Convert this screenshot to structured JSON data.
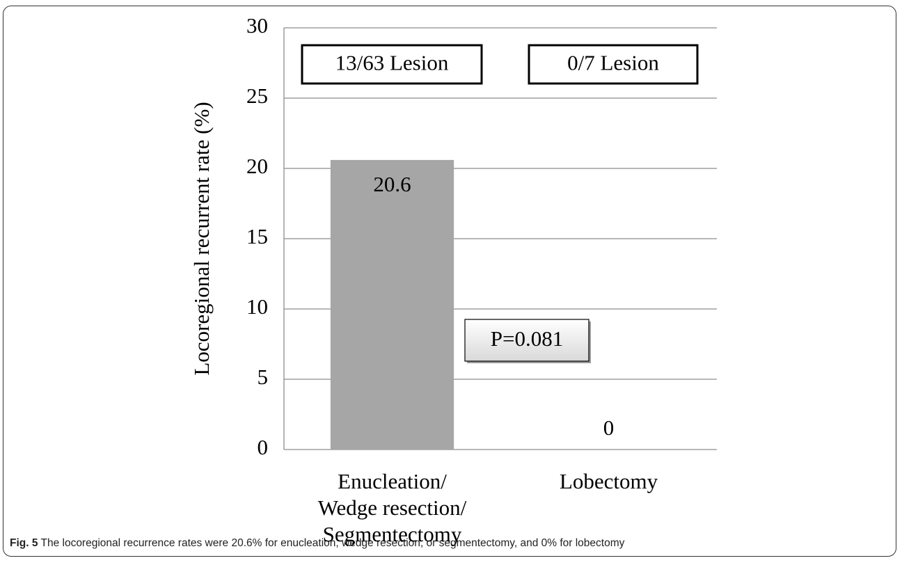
{
  "chart_data": {
    "type": "bar",
    "y_label": "Locoregional recurrent rate (%)",
    "categories": [
      "Enucleation/\nWedge resection/\nSegmentectomy",
      "Lobectomy"
    ],
    "values": [
      20.6,
      0
    ],
    "color": "#a6a6a6",
    "ylim": [
      0,
      30
    ],
    "yticks": [
      0,
      5,
      10,
      15,
      20,
      25,
      30
    ],
    "grid": true,
    "annotations": [
      "13/63 Lesion",
      "0/7 Lesion",
      "P=0.081"
    ]
  },
  "caption": {
    "label": "Fig. 5",
    "text": "The locoregional recurrence rates were 20.6% for enucleation, wedge resection, or segmentectomy, and 0% for lobectomy"
  }
}
